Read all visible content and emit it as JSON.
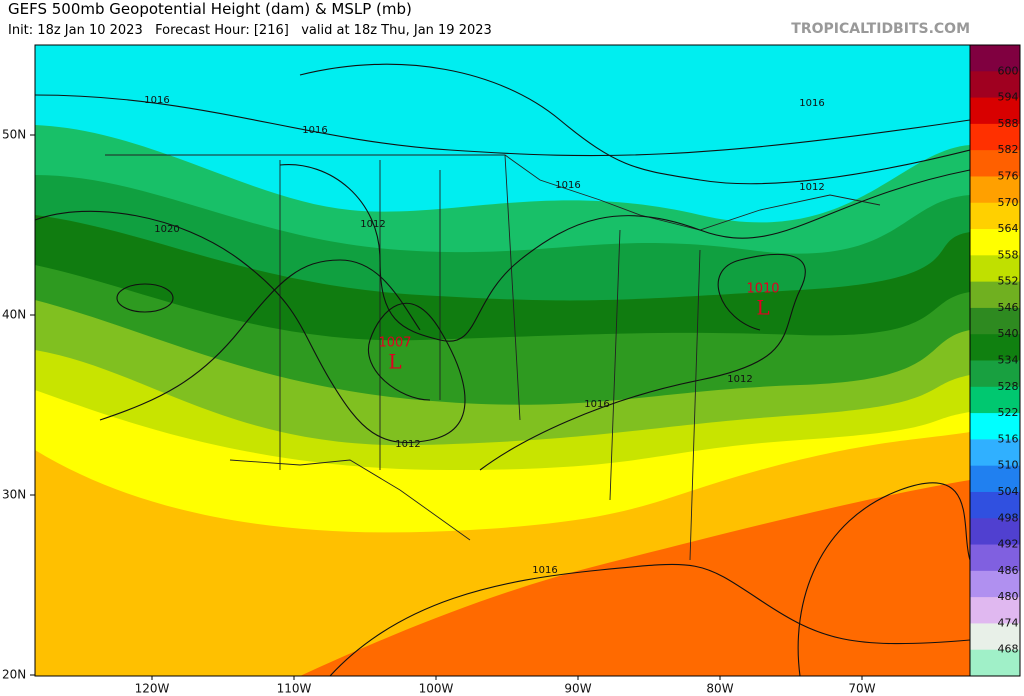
{
  "header": {
    "title": "GEFS 500mb Geopotential Height (dam) & MSLP (mb)",
    "subtitle": "Init: 18z Jan 10 2023   Forecast Hour: [216]   valid at 18z Thu, Jan 19 2023",
    "watermark": "TROPICALTIDBITS.COM"
  },
  "map": {
    "latitude_labels": [
      "50N",
      "40N",
      "30N",
      "20N"
    ],
    "longitude_labels": [
      "120W",
      "110W",
      "100W",
      "90W",
      "80W",
      "70W"
    ],
    "isobar_labels": [
      "1016",
      "1016",
      "1016",
      "1016",
      "1012",
      "1012",
      "1020",
      "1012",
      "1012",
      "1016",
      "1016"
    ],
    "pressure_centers": [
      {
        "value": "1007",
        "label": "L"
      },
      {
        "value": "1010",
        "label": "L"
      }
    ]
  },
  "colorbar": {
    "labels": [
      600,
      594,
      588,
      582,
      576,
      570,
      564,
      558,
      552,
      546,
      540,
      534,
      528,
      522,
      516,
      510,
      504,
      498,
      492,
      486,
      480,
      474,
      468
    ],
    "colors": [
      "#800040",
      "#a00020",
      "#d80000",
      "#ff3000",
      "#ff6000",
      "#ffa000",
      "#ffd000",
      "#ffff00",
      "#c0e000",
      "#70b020",
      "#2e8a20",
      "#108010",
      "#18a040",
      "#00c870",
      "#00ffff",
      "#30b0ff",
      "#2080f0",
      "#3050e0",
      "#5040d0",
      "#8060e0",
      "#b090f0",
      "#e0b8f0",
      "#e8f0e8",
      "#a0f0c8"
    ]
  }
}
